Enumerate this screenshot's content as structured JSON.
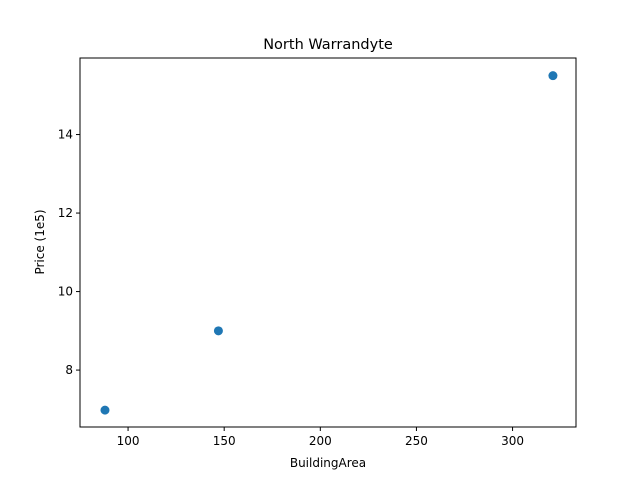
{
  "chart_data": {
    "type": "scatter",
    "title": "North Warrandyte",
    "xlabel": "BuildingArea",
    "ylabel": "Price (1e5)",
    "x": [
      88,
      147,
      321
    ],
    "y": [
      6.98,
      9.0,
      15.5
    ],
    "xlim": [
      75,
      333
    ],
    "ylim": [
      6.55,
      15.95
    ],
    "xticks": [
      100,
      150,
      200,
      250,
      300
    ],
    "yticks": [
      8,
      10,
      12,
      14
    ],
    "marker_color": "#1f77b4",
    "grid": false,
    "legend": "none"
  }
}
